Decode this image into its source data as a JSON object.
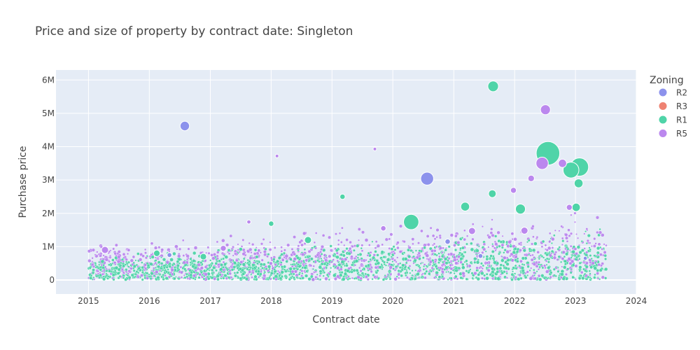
{
  "chart_data": {
    "type": "scatter",
    "title": "Price and size of property by contract date: Singleton",
    "xlabel": "Contract date",
    "ylabel": "Purchase price",
    "x_ticks": [
      "2015",
      "2016",
      "2017",
      "2018",
      "2019",
      "2020",
      "2021",
      "2022",
      "2023",
      "2024"
    ],
    "y_ticks": [
      "0",
      "1M",
      "2M",
      "3M",
      "4M",
      "5M",
      "6M"
    ],
    "xlim": [
      "2014-06-20",
      "2024-01-01"
    ],
    "ylim": [
      -420000,
      6300000
    ],
    "grid": true,
    "legend": {
      "title": "Zoning",
      "position": "right"
    },
    "series": [
      {
        "name": "R2",
        "color": "#8c92ec",
        "points": [
          {
            "x": "2016-08-01",
            "y": 4620000,
            "size": 1.6
          },
          {
            "x": "2020-07-25",
            "y": 3040000,
            "size": 2.2
          },
          {
            "x": "2020-11-25",
            "y": 1150000,
            "size": 0.9
          },
          {
            "x": "2016-05-01",
            "y": 750000,
            "size": 0.8
          },
          {
            "x": "2021-06-10",
            "y": 720000,
            "size": 0.8
          },
          {
            "x": "2023-03-01",
            "y": 650000,
            "size": 0.7
          }
        ]
      },
      {
        "name": "R3",
        "color": "#ee8272",
        "points": []
      },
      {
        "name": "R1",
        "color": "#4fd4a8",
        "points": [
          {
            "x": "2021-08-25",
            "y": 5810000,
            "size": 1.8
          },
          {
            "x": "2022-07-20",
            "y": 3800000,
            "size": 4.0
          },
          {
            "x": "2023-01-25",
            "y": 3390000,
            "size": 3.1
          },
          {
            "x": "2022-12-05",
            "y": 3300000,
            "size": 2.7
          },
          {
            "x": "2023-01-20",
            "y": 2900000,
            "size": 1.5
          },
          {
            "x": "2021-08-20",
            "y": 2590000,
            "size": 1.3
          },
          {
            "x": "2021-03-10",
            "y": 2200000,
            "size": 1.5
          },
          {
            "x": "2022-02-05",
            "y": 2130000,
            "size": 1.7
          },
          {
            "x": "2023-01-05",
            "y": 2180000,
            "size": 1.4
          },
          {
            "x": "2020-04-20",
            "y": 1740000,
            "size": 2.6
          },
          {
            "x": "2018-08-10",
            "y": 1200000,
            "size": 1.2
          },
          {
            "x": "2019-03-05",
            "y": 2500000,
            "size": 0.9
          },
          {
            "x": "2018-01-01",
            "y": 1690000,
            "size": 0.9
          },
          {
            "x": "2016-02-15",
            "y": 800000,
            "size": 1.1
          },
          {
            "x": "2016-11-20",
            "y": 700000,
            "size": 1.1
          }
        ]
      },
      {
        "name": "R5",
        "color": "#bb88ee",
        "points": [
          {
            "x": "2022-07-05",
            "y": 5110000,
            "size": 1.7
          },
          {
            "x": "2022-06-15",
            "y": 3500000,
            "size": 2.1
          },
          {
            "x": "2022-10-15",
            "y": 3500000,
            "size": 1.4
          },
          {
            "x": "2022-04-10",
            "y": 3050000,
            "size": 1.1
          },
          {
            "x": "2021-12-25",
            "y": 2690000,
            "size": 1.0
          },
          {
            "x": "2022-11-25",
            "y": 2180000,
            "size": 1.0
          },
          {
            "x": "2022-03-01",
            "y": 1480000,
            "size": 1.2
          },
          {
            "x": "2018-02-05",
            "y": 3720000,
            "size": 0.6
          },
          {
            "x": "2019-09-15",
            "y": 3930000,
            "size": 0.6
          },
          {
            "x": "2017-08-20",
            "y": 1740000,
            "size": 0.7
          },
          {
            "x": "2015-04-10",
            "y": 900000,
            "size": 1.2
          },
          {
            "x": "2017-03-20",
            "y": 950000,
            "size": 1.0
          },
          {
            "x": "2019-11-05",
            "y": 1550000,
            "size": 0.9
          },
          {
            "x": "2021-04-20",
            "y": 1470000,
            "size": 1.2
          }
        ]
      }
    ]
  }
}
